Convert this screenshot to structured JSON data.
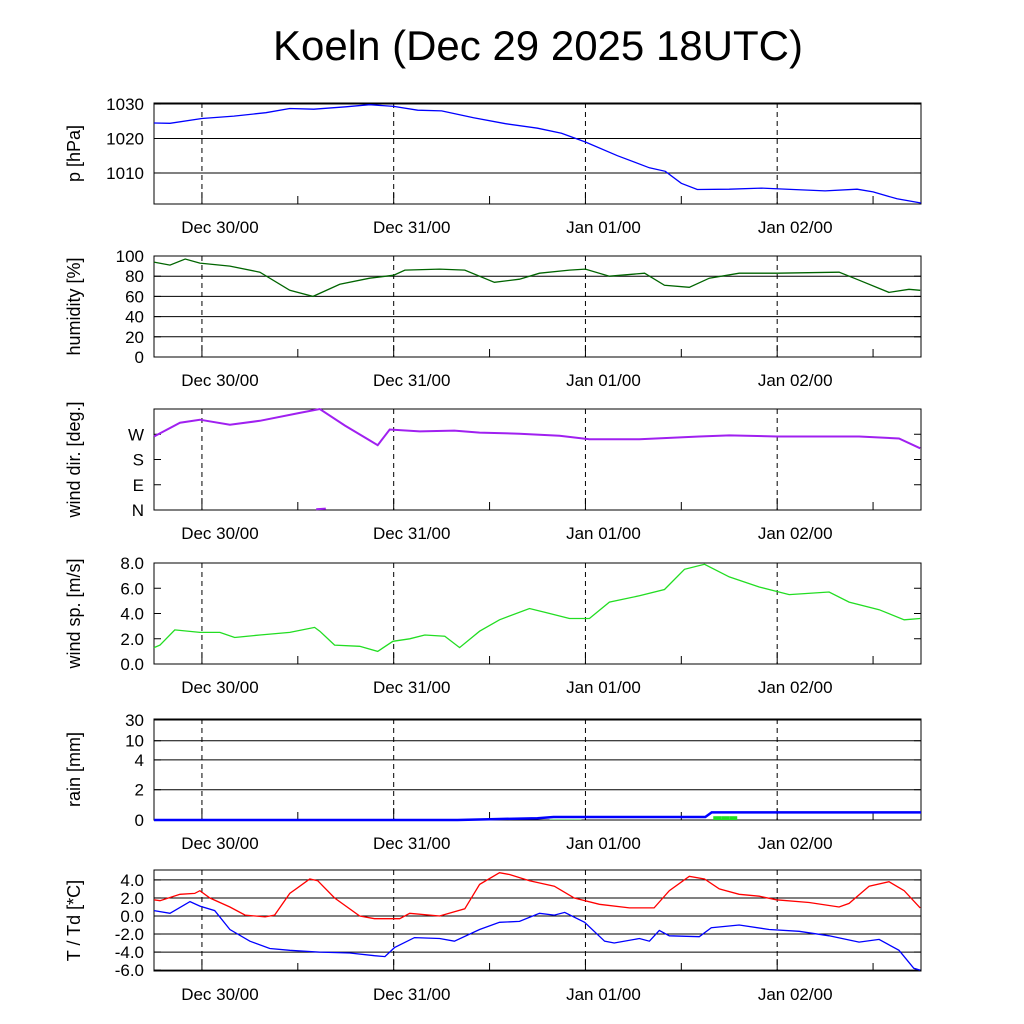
{
  "title": "Koeln (Dec 29 2025 18UTC)",
  "chart_data": [
    {
      "id": "pressure",
      "type": "line",
      "ylabel": "p [hPa]",
      "ylim": [
        1001,
        1030.3
      ],
      "yticks": [
        {
          "v": 1030,
          "label": "1030"
        },
        {
          "v": 1020,
          "label": "1020"
        },
        {
          "v": 1010,
          "label": "1010"
        }
      ],
      "grid": true,
      "series": [
        {
          "name": "pressure",
          "color": "#0000ff",
          "points": [
            [
              0,
              1024.5
            ],
            [
              2,
              1024.4
            ],
            [
              6,
              1025.8
            ],
            [
              10,
              1026.5
            ],
            [
              14,
              1027.5
            ],
            [
              17,
              1028.7
            ],
            [
              20,
              1028.5
            ],
            [
              24,
              1029.2
            ],
            [
              27,
              1029.8
            ],
            [
              30,
              1029.3
            ],
            [
              33,
              1028.2
            ],
            [
              36,
              1028.0
            ],
            [
              40,
              1026.0
            ],
            [
              44,
              1024.3
            ],
            [
              48,
              1023.0
            ],
            [
              51,
              1021.5
            ],
            [
              54,
              1019.0
            ],
            [
              58,
              1015.0
            ],
            [
              62,
              1011.5
            ],
            [
              64,
              1010.5
            ],
            [
              66,
              1007.0
            ],
            [
              68,
              1005.2
            ],
            [
              72,
              1005.3
            ],
            [
              76,
              1005.6
            ],
            [
              80,
              1005.2
            ],
            [
              84,
              1004.8
            ],
            [
              88,
              1005.3
            ],
            [
              90,
              1004.5
            ],
            [
              93,
              1002.5
            ],
            [
              96,
              1001.3
            ]
          ]
        }
      ]
    },
    {
      "id": "humidity",
      "type": "line",
      "ylabel": "humidity [%]",
      "ylim": [
        0,
        100
      ],
      "yticks": [
        {
          "v": 100,
          "label": "100"
        },
        {
          "v": 80,
          "label": "80"
        },
        {
          "v": 60,
          "label": "60"
        },
        {
          "v": 40,
          "label": "40"
        },
        {
          "v": 20,
          "label": "20"
        },
        {
          "v": 0,
          "label": "0"
        }
      ],
      "grid": true,
      "series": [
        {
          "name": "humidity",
          "color": "#006400",
          "points": [
            [
              0,
              94
            ],
            [
              2,
              91
            ],
            [
              3.9,
              97
            ],
            [
              5.75,
              93
            ],
            [
              9.5,
              90
            ],
            [
              13.25,
              84
            ],
            [
              17,
              66
            ],
            [
              19.9,
              60
            ],
            [
              23.25,
              72
            ],
            [
              27,
              78
            ],
            [
              30,
              81
            ],
            [
              31.4,
              86
            ],
            [
              35.75,
              87
            ],
            [
              38.9,
              86
            ],
            [
              42.6,
              74
            ],
            [
              45.75,
              77
            ],
            [
              48.25,
              83
            ],
            [
              52,
              86
            ],
            [
              54,
              87
            ],
            [
              57,
              80
            ],
            [
              61.4,
              83
            ],
            [
              63.9,
              71
            ],
            [
              67,
              69
            ],
            [
              69.5,
              78
            ],
            [
              73.25,
              83
            ],
            [
              78,
              83
            ],
            [
              85.75,
              84
            ],
            [
              88.25,
              76
            ],
            [
              92,
              64
            ],
            [
              94.5,
              67
            ],
            [
              95.9,
              66
            ]
          ]
        }
      ]
    },
    {
      "id": "wind_direction",
      "type": "line",
      "ylabel": "wind dir. [deg.]",
      "ylim": [
        0,
        360
      ],
      "yticks": [
        {
          "v": 270,
          "label": "W"
        },
        {
          "v": 180,
          "label": "S"
        },
        {
          "v": 90,
          "label": "E"
        },
        {
          "v": 0,
          "label": "N"
        }
      ],
      "grid": false,
      "series": [
        {
          "name": "wind direction",
          "color": "#a020f0",
          "points": [
            [
              0,
              262
            ],
            [
              3.25,
              311
            ],
            [
              5.75,
              322
            ],
            [
              9.5,
              304
            ],
            [
              13.25,
              318
            ],
            [
              18.25,
              346
            ],
            [
              20.75,
              360
            ],
            [
              23.9,
              301
            ],
            [
              27,
              248
            ],
            [
              28,
              231
            ],
            [
              29.5,
              287
            ],
            [
              33.25,
              280
            ],
            [
              37.6,
              283
            ],
            [
              40.75,
              276
            ],
            [
              45.75,
              272
            ],
            [
              50.75,
              265
            ],
            [
              54.5,
              252
            ],
            [
              60.75,
              252
            ],
            [
              68.25,
              262
            ],
            [
              72,
              266
            ],
            [
              78,
              262
            ],
            [
              88.25,
              262
            ],
            [
              93.25,
              255
            ],
            [
              95.9,
              220
            ]
          ]
        },
        {
          "name": "wind direction (wrapped)",
          "color": "#a020f0",
          "points": [
            [
              20.3,
              3
            ],
            [
              21.5,
              5
            ]
          ]
        }
      ]
    },
    {
      "id": "wind_speed",
      "type": "line",
      "ylabel": "wind sp. [m/s]",
      "ylim": [
        0,
        8
      ],
      "yticks": [
        {
          "v": 8,
          "label": "8.0"
        },
        {
          "v": 6,
          "label": "6.0"
        },
        {
          "v": 4,
          "label": "4.0"
        },
        {
          "v": 2,
          "label": "2.0"
        },
        {
          "v": 0,
          "label": "0.0"
        }
      ],
      "grid": false,
      "series": [
        {
          "name": "wind speed",
          "color": "#22dd22",
          "points": [
            [
              0,
              1.3
            ],
            [
              0.75,
              1.5
            ],
            [
              2.6,
              2.7
            ],
            [
              5.75,
              2.5
            ],
            [
              8.25,
              2.5
            ],
            [
              10.1,
              2.1
            ],
            [
              13.25,
              2.3
            ],
            [
              17,
              2.5
            ],
            [
              20.1,
              2.9
            ],
            [
              20.75,
              2.6
            ],
            [
              22.6,
              1.5
            ],
            [
              25.75,
              1.4
            ],
            [
              28,
              1.0
            ],
            [
              29.9,
              1.8
            ],
            [
              32,
              2.0
            ],
            [
              33.9,
              2.3
            ],
            [
              36.4,
              2.2
            ],
            [
              38.25,
              1.3
            ],
            [
              40.75,
              2.6
            ],
            [
              43.25,
              3.5
            ],
            [
              47,
              4.4
            ],
            [
              48.9,
              4.1
            ],
            [
              52,
              3.6
            ],
            [
              54.5,
              3.6
            ],
            [
              57,
              4.9
            ],
            [
              60.75,
              5.4
            ],
            [
              63.9,
              5.9
            ],
            [
              66.4,
              7.5
            ],
            [
              68.9,
              7.9
            ],
            [
              72,
              6.9
            ],
            [
              75.75,
              6.1
            ],
            [
              79.5,
              5.5
            ],
            [
              84.5,
              5.7
            ],
            [
              87,
              4.9
            ],
            [
              90.75,
              4.3
            ],
            [
              93.9,
              3.5
            ],
            [
              95.9,
              3.6
            ]
          ]
        }
      ]
    },
    {
      "id": "rain",
      "type": "line",
      "ylabel": "rain [mm]",
      "ylim": [
        0,
        30
      ],
      "yticks": [
        {
          "v": 30,
          "label": "30"
        },
        {
          "v": 10,
          "label": "10"
        },
        {
          "v": 4,
          "label": "4"
        },
        {
          "v": 2,
          "label": "2"
        },
        {
          "v": 0,
          "label": "0"
        }
      ],
      "grid": true,
      "series": [
        {
          "name": "accumulated rain",
          "color": "#0000ff",
          "points": [
            [
              0,
              0
            ],
            [
              38,
              0
            ],
            [
              42,
              0.05
            ],
            [
              48,
              0.12
            ],
            [
              50,
              0.2
            ],
            [
              69,
              0.2
            ],
            [
              69.8,
              0.5
            ],
            [
              96,
              0.5
            ]
          ]
        }
      ],
      "bars": {
        "name": "hourly rain",
        "color": "#22dd22",
        "points": [
          [
            50,
            0.03
          ],
          [
            51,
            0.03
          ],
          [
            52,
            0.03
          ],
          [
            53,
            0.03
          ],
          [
            70.5,
            0.25
          ],
          [
            71.5,
            0.25
          ],
          [
            72.5,
            0.25
          ]
        ]
      }
    },
    {
      "id": "temperature",
      "type": "line",
      "ylabel": "T / Td [*C]",
      "ylim": [
        -6.1,
        5.1
      ],
      "yticks": [
        {
          "v": 4,
          "label": "4.0"
        },
        {
          "v": 2,
          "label": "2.0"
        },
        {
          "v": 0,
          "label": "0.0"
        },
        {
          "v": -2,
          "label": "-2.0"
        },
        {
          "v": -4,
          "label": "-4.0"
        },
        {
          "v": -6,
          "label": "-6.0"
        }
      ],
      "grid": true,
      "series": [
        {
          "name": "T",
          "color": "#ff0000",
          "points": [
            [
              0,
              1.8
            ],
            [
              0.75,
              1.7
            ],
            [
              3.25,
              2.4
            ],
            [
              5.1,
              2.5
            ],
            [
              5.75,
              2.8
            ],
            [
              7,
              2.0
            ],
            [
              9.5,
              1.0
            ],
            [
              11.4,
              0.1
            ],
            [
              13.9,
              -0.1
            ],
            [
              15.1,
              0.1
            ],
            [
              17,
              2.5
            ],
            [
              19.5,
              4.1
            ],
            [
              20.5,
              3.9
            ],
            [
              22.6,
              2.0
            ],
            [
              25.75,
              0.0
            ],
            [
              27.6,
              -0.3
            ],
            [
              30.75,
              -0.3
            ],
            [
              32,
              0.3
            ],
            [
              35.75,
              0.0
            ],
            [
              38.9,
              0.8
            ],
            [
              40.75,
              3.5
            ],
            [
              43.25,
              4.8
            ],
            [
              44.5,
              4.6
            ],
            [
              47,
              3.9
            ],
            [
              50.1,
              3.3
            ],
            [
              52.6,
              2.0
            ],
            [
              55.75,
              1.3
            ],
            [
              59.5,
              0.9
            ],
            [
              62.6,
              0.9
            ],
            [
              64.5,
              2.8
            ],
            [
              67,
              4.4
            ],
            [
              68.9,
              4.1
            ],
            [
              70.75,
              3.0
            ],
            [
              73.25,
              2.4
            ],
            [
              75.75,
              2.2
            ],
            [
              77.9,
              1.8
            ],
            [
              82,
              1.5
            ],
            [
              85.75,
              1.0
            ],
            [
              87,
              1.4
            ],
            [
              89.5,
              3.3
            ],
            [
              92,
              3.8
            ],
            [
              93.9,
              2.8
            ],
            [
              95.9,
              0.9
            ]
          ]
        },
        {
          "name": "Td",
          "color": "#0000ff",
          "points": [
            [
              0,
              0.6
            ],
            [
              2,
              0.3
            ],
            [
              4.5,
              1.6
            ],
            [
              5.75,
              1.1
            ],
            [
              7.6,
              0.6
            ],
            [
              9.5,
              -1.5
            ],
            [
              12,
              -2.8
            ],
            [
              14.5,
              -3.6
            ],
            [
              17,
              -3.8
            ],
            [
              20.75,
              -4.0
            ],
            [
              24.5,
              -4.1
            ],
            [
              27.6,
              -4.4
            ],
            [
              28.9,
              -4.5
            ],
            [
              30.1,
              -3.5
            ],
            [
              32.6,
              -2.4
            ],
            [
              35.75,
              -2.5
            ],
            [
              37.6,
              -2.8
            ],
            [
              40.75,
              -1.5
            ],
            [
              43.25,
              -0.7
            ],
            [
              45.75,
              -0.6
            ],
            [
              48.25,
              0.3
            ],
            [
              50.1,
              0.1
            ],
            [
              51.4,
              0.4
            ],
            [
              53.9,
              -0.7
            ],
            [
              56.4,
              -2.8
            ],
            [
              57.6,
              -3.0
            ],
            [
              60.75,
              -2.5
            ],
            [
              62,
              -2.8
            ],
            [
              63.25,
              -1.6
            ],
            [
              64.5,
              -2.2
            ],
            [
              68.25,
              -2.3
            ],
            [
              69.75,
              -1.3
            ],
            [
              73.25,
              -1.0
            ],
            [
              77,
              -1.5
            ],
            [
              80.75,
              -1.7
            ],
            [
              84.5,
              -2.2
            ],
            [
              88.25,
              -2.9
            ],
            [
              90.75,
              -2.6
            ],
            [
              93.25,
              -3.8
            ],
            [
              95.1,
              -5.8
            ],
            [
              95.9,
              -6.0
            ]
          ]
        }
      ]
    }
  ],
  "time_axis": {
    "range_hours": [
      0,
      96
    ],
    "unit": "hours since Dec 29 2025 18UTC",
    "major": [
      {
        "h": 6,
        "label": "Dec 30/00"
      },
      {
        "h": 30,
        "label": "Dec 31/00"
      },
      {
        "h": 54,
        "label": "Jan 01/00"
      },
      {
        "h": 78,
        "label": "Jan 02/00"
      }
    ],
    "minor": [
      18,
      42,
      66,
      90
    ]
  }
}
